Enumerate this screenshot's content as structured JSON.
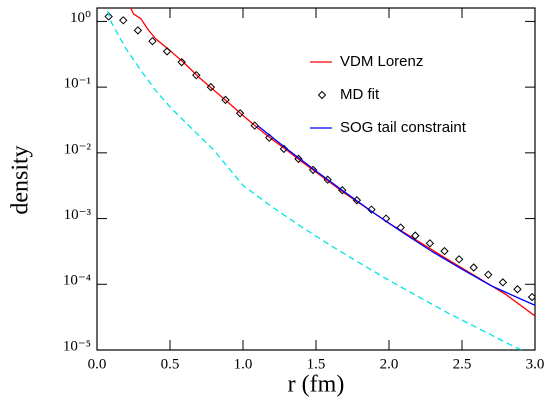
{
  "chart_data": {
    "type": "line",
    "xlabel": "r (fm)",
    "ylabel": "density",
    "log_y": true,
    "legend": "upper right",
    "xlim": [
      0,
      3
    ],
    "xticks": [
      {
        "value": 0,
        "label": "0.0"
      },
      0.5,
      {
        "value": 1,
        "label": "1.0"
      },
      1.5,
      {
        "value": 2,
        "label": "2.0"
      },
      2.5,
      {
        "value": 3,
        "label": "3.0"
      }
    ],
    "ylim": [
      1e-05,
      1.6
    ],
    "yticks": [
      {
        "value": 1e-05,
        "label": "10⁻⁵"
      },
      {
        "value": 0.0001,
        "label": "10⁻⁴"
      },
      {
        "value": 0.001,
        "label": "10⁻³"
      },
      {
        "value": 0.01,
        "label": "10⁻²"
      },
      {
        "value": 0.1,
        "label": "10⁻¹"
      },
      {
        "value": 1,
        "label": "10⁰"
      }
    ],
    "series": [
      {
        "name": "VDM Lorenz",
        "color": "#ff0000",
        "style": "line",
        "x": [
          0.2,
          0.25,
          0.3,
          0.35,
          0.4,
          0.5,
          0.6,
          0.7,
          0.8,
          0.9,
          1.0,
          1.1,
          1.2,
          1.3,
          1.4,
          1.5,
          1.6,
          1.7,
          1.8,
          1.9,
          2.0,
          2.2,
          2.4,
          2.6,
          2.8,
          3.0
        ],
        "values": [
          2.2,
          1.3,
          1.1,
          0.75,
          0.55,
          0.36,
          0.23,
          0.14,
          0.09,
          0.058,
          0.037,
          0.024,
          0.016,
          0.011,
          0.0074,
          0.0051,
          0.0035,
          0.0024,
          0.0017,
          0.0012,
          0.00085,
          0.00045,
          0.00024,
          0.00013,
          7e-05,
          3.3e-05
        ]
      },
      {
        "name": "MD fit",
        "color": "#000000",
        "style": "diamond",
        "x": [
          0.08,
          0.18,
          0.28,
          0.38,
          0.48,
          0.58,
          0.68,
          0.78,
          0.88,
          0.98,
          1.08,
          1.18,
          1.28,
          1.38,
          1.48,
          1.58,
          1.68,
          1.78,
          1.88,
          1.98,
          2.08,
          2.18,
          2.28,
          2.38,
          2.48,
          2.58,
          2.68,
          2.78,
          2.88,
          2.98
        ],
        "values": [
          1.19,
          1.04,
          0.73,
          0.5,
          0.35,
          0.24,
          0.152,
          0.1,
          0.064,
          0.04,
          0.026,
          0.017,
          0.0115,
          0.0081,
          0.0055,
          0.0039,
          0.0027,
          0.0019,
          0.00137,
          0.001,
          0.00073,
          0.00055,
          0.00042,
          0.00032,
          0.00024,
          0.00018,
          0.00014,
          0.000107,
          8.4e-05,
          6.4e-05
        ]
      },
      {
        "name": "SOG tail constraint",
        "color": "#0000ff",
        "style": "line",
        "x": [
          1.1,
          1.3,
          1.5,
          1.7,
          1.9,
          2.1,
          2.3,
          2.5,
          2.7,
          2.9,
          3.0
        ],
        "values": [
          0.026,
          0.0115,
          0.0053,
          0.0025,
          0.0012,
          0.0006,
          0.00031,
          0.00017,
          9.5e-05,
          6e-05,
          4.8e-05
        ]
      },
      {
        "color": "#00e5e5",
        "style": "dashed",
        "x": [
          0.05,
          0.1,
          0.2,
          0.3,
          0.4,
          0.5,
          0.6,
          0.8,
          1.0,
          1.2,
          1.4,
          1.6,
          1.8,
          2.0,
          2.2,
          2.4,
          2.6,
          2.8,
          3.0
        ],
        "values": [
          2.0,
          0.95,
          0.38,
          0.18,
          0.09,
          0.05,
          0.03,
          0.011,
          0.0032,
          0.0015,
          0.00075,
          0.00039,
          0.00021,
          0.000115,
          6.5e-05,
          3.7e-05,
          2.2e-05,
          1.3e-05,
          8e-06
        ]
      }
    ]
  }
}
